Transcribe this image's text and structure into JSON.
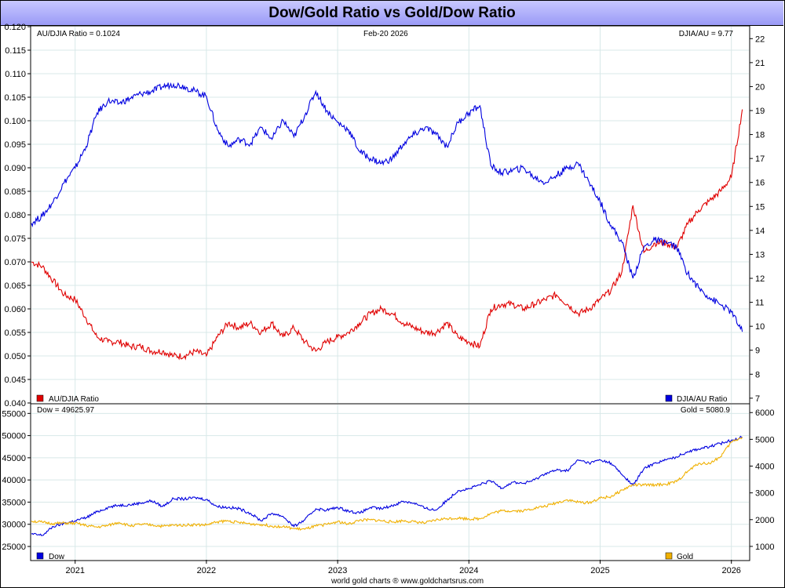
{
  "title": "Dow/Gold Ratio vs Gold/Dow Ratio",
  "footer": "world gold charts ® www.goldchartsrus.com",
  "date_label": "Feb-20  2026",
  "top_panel": {
    "left_readout": "AU/DJIA Ratio = 0.1024",
    "right_readout": "DJIA/AU = 9.77",
    "left_legend": "AU/DJIA Ratio",
    "right_legend": "DJIA/AU Ratio",
    "left_ticks": [
      "0.120",
      "0.115",
      "0.110",
      "0.105",
      "0.100",
      "0.095",
      "0.090",
      "0.085",
      "0.080",
      "0.075",
      "0.070",
      "0.065",
      "0.060",
      "0.055",
      "0.050",
      "0.045",
      "0.040"
    ],
    "right_ticks": [
      "22",
      "21",
      "20",
      "19",
      "18",
      "17",
      "16",
      "15",
      "14",
      "13",
      "12",
      "11",
      "10",
      "9",
      "8",
      "7"
    ]
  },
  "bottom_panel": {
    "left_readout": "Dow = 49625.97",
    "right_readout": "Gold = 5080.9",
    "left_legend": "Dow",
    "right_legend": "Gold",
    "left_ticks": [
      "55000",
      "50000",
      "45000",
      "40000",
      "35000",
      "30000",
      "25000"
    ],
    "right_ticks": [
      "6000",
      "5000",
      "4000",
      "3000",
      "2000",
      "1000"
    ]
  },
  "x_ticks": [
    "2021",
    "2022",
    "2023",
    "2024",
    "2025",
    "2026"
  ],
  "colors": {
    "red": "#e00000",
    "blue": "#0000e0",
    "gold": "#f0b000",
    "grid": "#d8e8e8"
  },
  "chart_data": [
    {
      "type": "line",
      "title": "Dow/Gold Ratio vs Gold/Dow Ratio",
      "x": [
        "2020-09",
        "2020-10",
        "2020-11",
        "2020-12",
        "2021-01",
        "2021-02",
        "2021-03",
        "2021-04",
        "2021-05",
        "2021-06",
        "2021-07",
        "2021-08",
        "2021-09",
        "2021-10",
        "2021-11",
        "2021-12",
        "2022-01",
        "2022-02",
        "2022-03",
        "2022-04",
        "2022-05",
        "2022-06",
        "2022-07",
        "2022-08",
        "2022-09",
        "2022-10",
        "2022-11",
        "2022-12",
        "2023-01",
        "2023-02",
        "2023-03",
        "2023-04",
        "2023-05",
        "2023-06",
        "2023-07",
        "2023-08",
        "2023-09",
        "2023-10",
        "2023-11",
        "2023-12",
        "2024-01",
        "2024-02",
        "2024-03",
        "2024-04",
        "2024-05",
        "2024-06",
        "2024-07",
        "2024-08",
        "2024-09",
        "2024-10",
        "2024-11",
        "2024-12",
        "2025-01",
        "2025-02",
        "2025-03",
        "2025-04",
        "2025-05",
        "2025-06",
        "2025-07",
        "2025-08",
        "2025-09",
        "2025-10",
        "2025-11",
        "2025-12",
        "2026-01",
        "2026-02"
      ],
      "series": [
        {
          "name": "AU/DJIA Ratio",
          "axis": "left",
          "ylim": [
            0.04,
            0.12
          ],
          "values": [
            0.07,
            0.069,
            0.066,
            0.063,
            0.062,
            0.058,
            0.054,
            0.053,
            0.053,
            0.052,
            0.052,
            0.051,
            0.051,
            0.05,
            0.05,
            0.051,
            0.05,
            0.054,
            0.057,
            0.056,
            0.057,
            0.055,
            0.057,
            0.054,
            0.056,
            0.053,
            0.051,
            0.053,
            0.054,
            0.055,
            0.057,
            0.059,
            0.06,
            0.059,
            0.057,
            0.056,
            0.055,
            0.055,
            0.057,
            0.054,
            0.053,
            0.052,
            0.06,
            0.061,
            0.061,
            0.06,
            0.061,
            0.062,
            0.063,
            0.061,
            0.059,
            0.06,
            0.062,
            0.064,
            0.068,
            0.082,
            0.072,
            0.074,
            0.074,
            0.073,
            0.078,
            0.081,
            0.083,
            0.085,
            0.088,
            0.1024
          ]
        },
        {
          "name": "DJIA/AU Ratio",
          "axis": "right",
          "ylim": [
            6.8,
            22.5
          ],
          "values": [
            14.3,
            14.6,
            15.2,
            16.0,
            16.6,
            17.5,
            18.9,
            19.4,
            19.3,
            19.5,
            19.7,
            19.8,
            20.0,
            20.1,
            20.0,
            19.8,
            19.6,
            18.2,
            17.5,
            17.8,
            17.6,
            18.3,
            17.8,
            18.6,
            17.9,
            18.8,
            19.8,
            19.0,
            18.5,
            18.2,
            17.3,
            17.0,
            16.8,
            17.0,
            17.6,
            18.0,
            18.3,
            18.0,
            17.5,
            18.5,
            18.9,
            19.2,
            16.7,
            16.4,
            16.5,
            16.6,
            16.2,
            16.0,
            16.3,
            16.6,
            16.8,
            16.0,
            15.2,
            14.2,
            13.5,
            12.0,
            13.3,
            13.6,
            13.5,
            13.3,
            12.2,
            11.6,
            11.2,
            10.9,
            10.6,
            9.77
          ]
        }
      ],
      "xlabel": "",
      "ylabel": "",
      "grid": true
    },
    {
      "type": "line",
      "title": "",
      "x": [
        "2020-09",
        "2020-10",
        "2020-11",
        "2020-12",
        "2021-01",
        "2021-02",
        "2021-03",
        "2021-04",
        "2021-05",
        "2021-06",
        "2021-07",
        "2021-08",
        "2021-09",
        "2021-10",
        "2021-11",
        "2021-12",
        "2022-01",
        "2022-02",
        "2022-03",
        "2022-04",
        "2022-05",
        "2022-06",
        "2022-07",
        "2022-08",
        "2022-09",
        "2022-10",
        "2022-11",
        "2022-12",
        "2023-01",
        "2023-02",
        "2023-03",
        "2023-04",
        "2023-05",
        "2023-06",
        "2023-07",
        "2023-08",
        "2023-09",
        "2023-10",
        "2023-11",
        "2023-12",
        "2024-01",
        "2024-02",
        "2024-03",
        "2024-04",
        "2024-05",
        "2024-06",
        "2024-07",
        "2024-08",
        "2024-09",
        "2024-10",
        "2024-11",
        "2024-12",
        "2025-01",
        "2025-02",
        "2025-03",
        "2025-04",
        "2025-05",
        "2025-06",
        "2025-07",
        "2025-08",
        "2025-09",
        "2025-10",
        "2025-11",
        "2025-12",
        "2026-01",
        "2026-02"
      ],
      "series": [
        {
          "name": "Dow",
          "axis": "left",
          "ylim": [
            22000,
            57000
          ],
          "values": [
            27800,
            27500,
            29500,
            30200,
            30800,
            31500,
            32800,
            33800,
            34300,
            34400,
            34800,
            35300,
            34000,
            35800,
            35700,
            36000,
            35600,
            34000,
            33800,
            33500,
            32500,
            30800,
            32500,
            31800,
            29500,
            31000,
            33500,
            33200,
            33800,
            33000,
            32500,
            33800,
            33500,
            34200,
            35200,
            34800,
            33600,
            33200,
            35400,
            37600,
            38000,
            38900,
            39800,
            38200,
            39500,
            39200,
            40000,
            41500,
            42200,
            42100,
            44500,
            43800,
            44500,
            43800,
            41200,
            38800,
            42500,
            43800,
            44500,
            45200,
            46400,
            47000,
            47500,
            48200,
            49000,
            49625.97
          ]
        },
        {
          "name": "Gold",
          "axis": "right",
          "ylim": [
            500,
            6300
          ],
          "values": [
            1950,
            1900,
            1850,
            1870,
            1860,
            1780,
            1720,
            1780,
            1900,
            1770,
            1820,
            1800,
            1750,
            1790,
            1800,
            1810,
            1800,
            1920,
            1950,
            1890,
            1840,
            1820,
            1760,
            1740,
            1660,
            1640,
            1760,
            1820,
            1930,
            1830,
            1980,
            1990,
            1960,
            1910,
            1960,
            1920,
            1870,
            1990,
            2040,
            2060,
            2030,
            2030,
            2230,
            2330,
            2330,
            2330,
            2430,
            2500,
            2630,
            2740,
            2650,
            2630,
            2800,
            2860,
            3100,
            3300,
            3290,
            3300,
            3320,
            3420,
            3800,
            4100,
            4100,
            4350,
            4900,
            5080.9
          ]
        }
      ],
      "xlabel": "",
      "ylabel": "",
      "grid": true
    }
  ]
}
